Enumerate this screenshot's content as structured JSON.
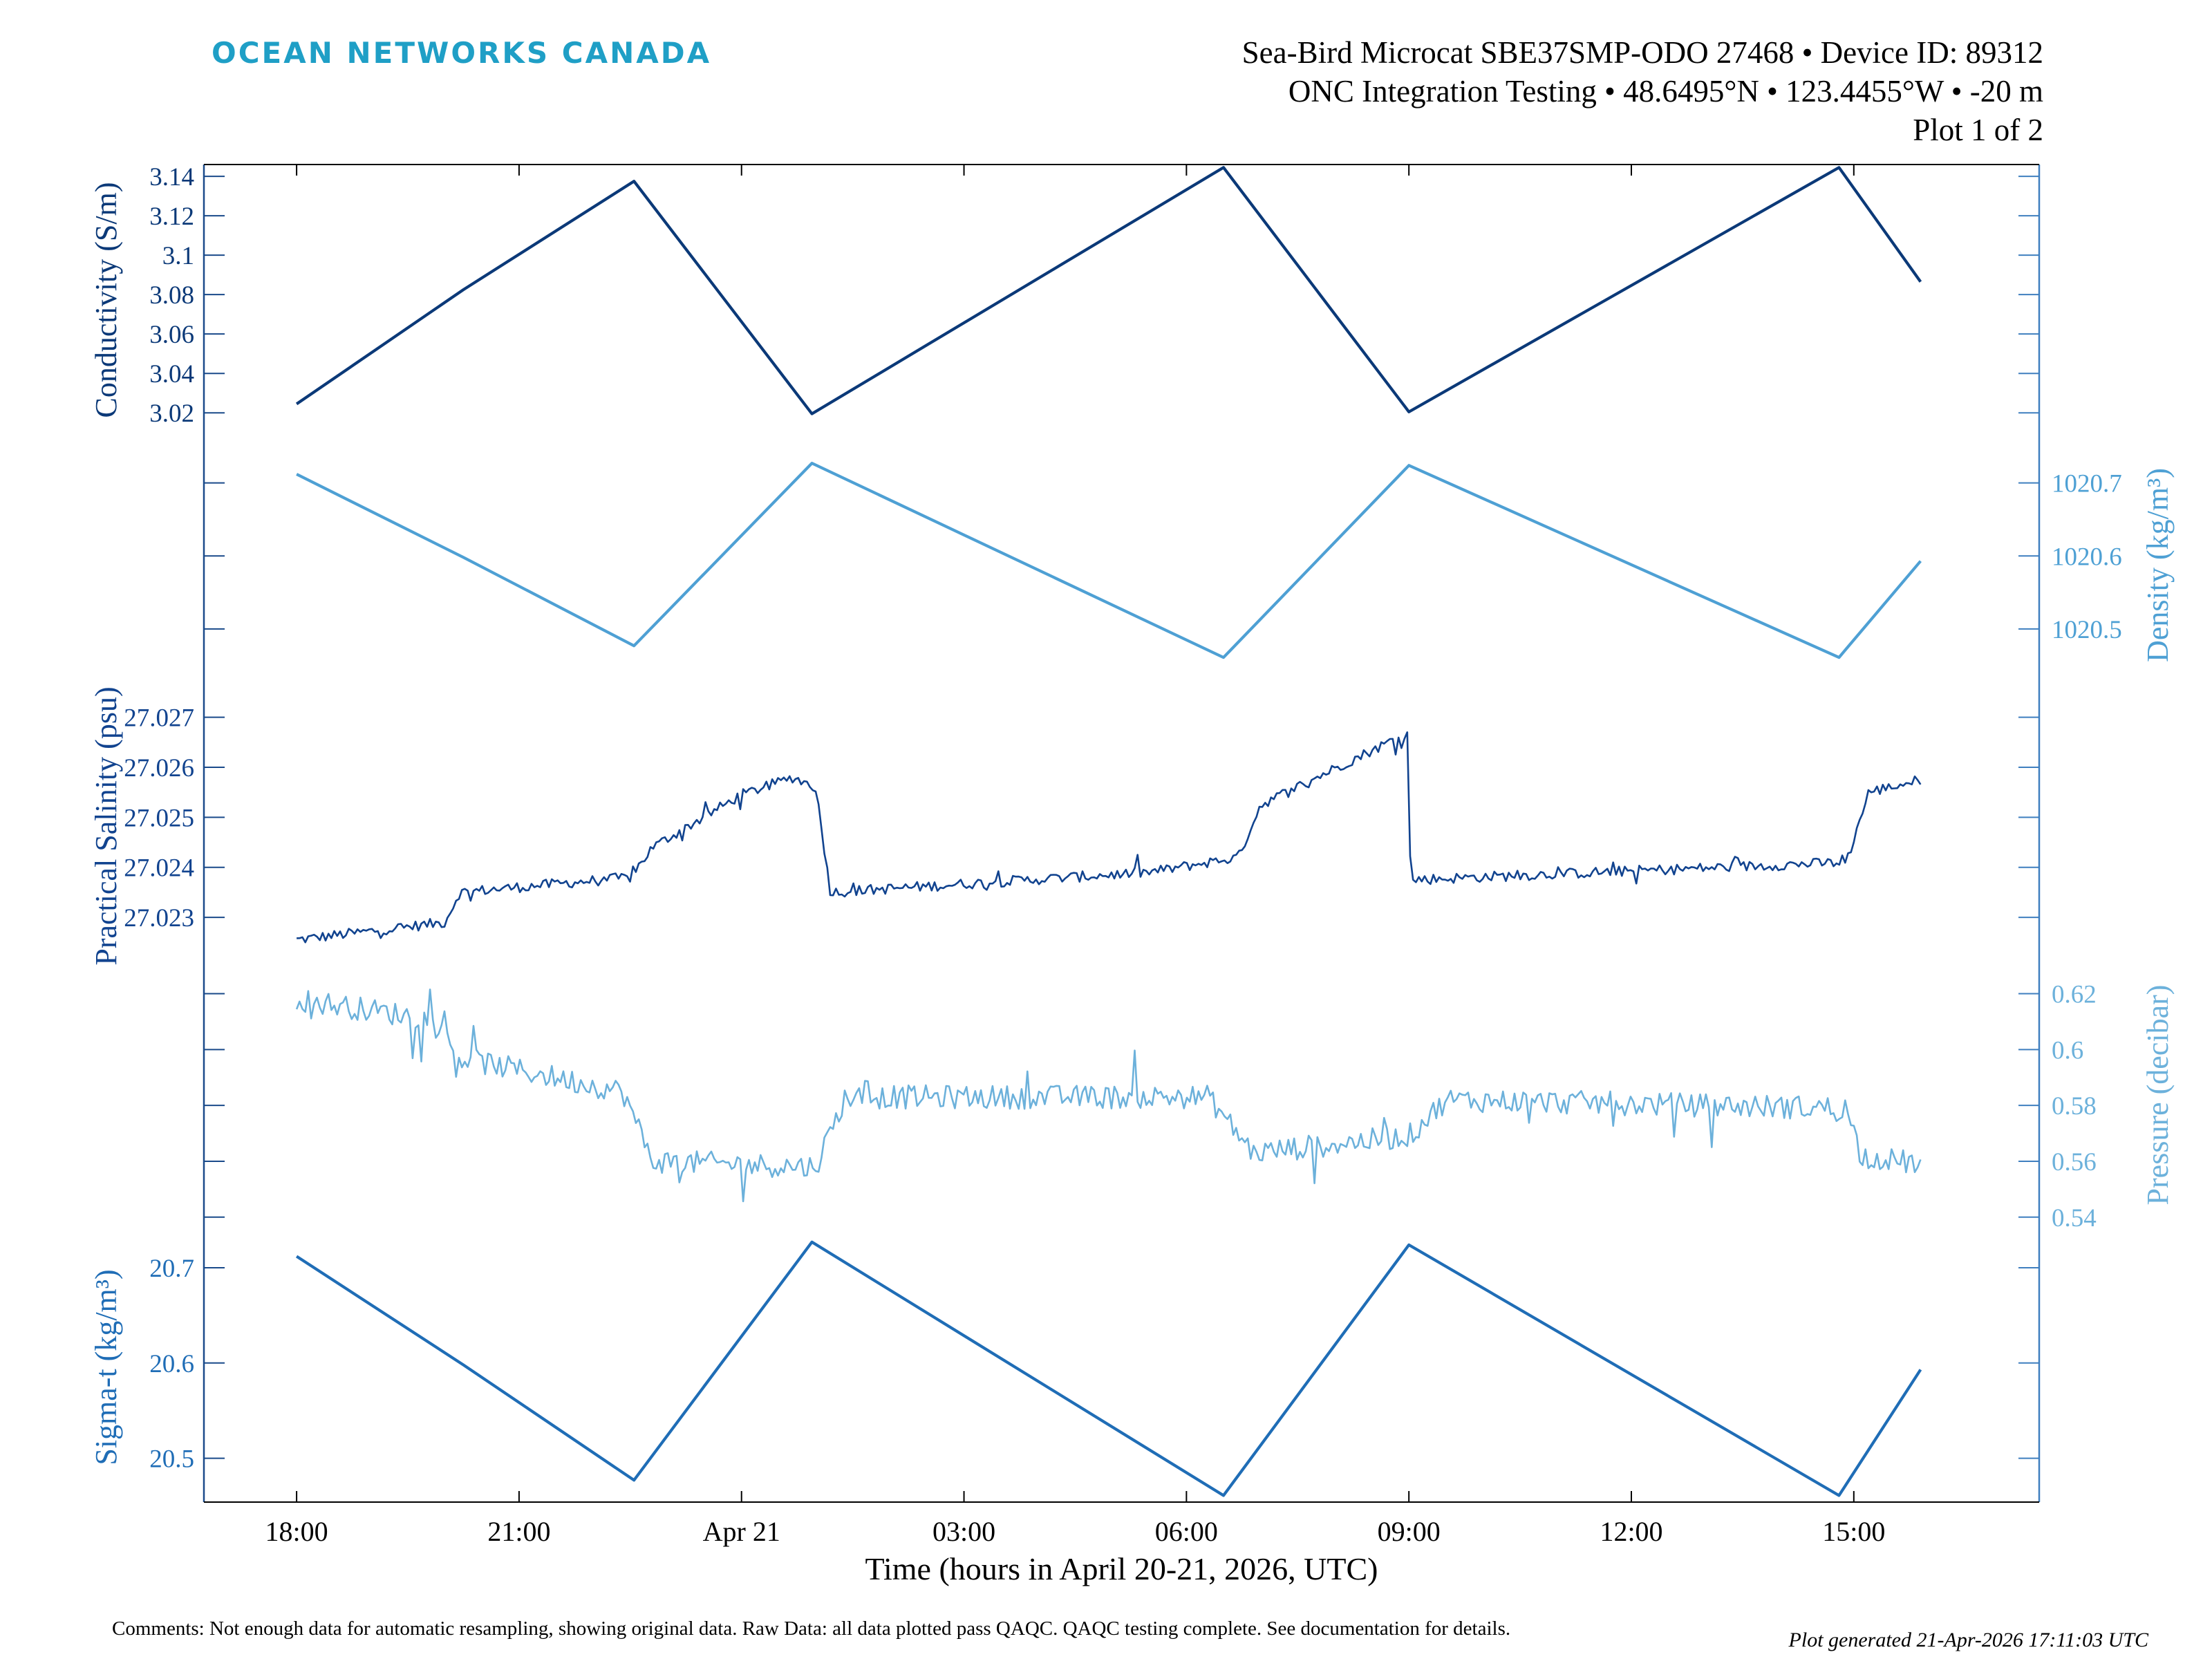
{
  "brand": "OCEAN NETWORKS CANADA",
  "header": {
    "line1": "Sea-Bird Microcat SBE37SMP-ODO 27468 • Device ID: 89312",
    "line2": "ONC Integration Testing • 48.6495°N • 123.4455°W • -20 m",
    "line3": "Plot 1 of 2"
  },
  "footer": {
    "comments": "Comments: Not enough data for automatic resampling, showing original data. Raw Data: all data plotted pass QAQC. QAQC testing complete. See documentation for details.",
    "generated": "Plot generated 21-Apr-2026 17:11:03 UTC"
  },
  "colors": {
    "conductivity": "#0b3978",
    "density": "#4ea0d4",
    "salinity": "#11438f",
    "pressure": "#6cb1db",
    "sigma": "#1f6db6",
    "frame_left": "#1a4a8a",
    "frame_right": "#3f7fbf"
  },
  "chart_data": {
    "type": "line",
    "xlabel": "Time (hours in April 20-21, 2026, UTC)",
    "xlim": [
      -1.25,
      23.5
    ],
    "x_ticks": [
      {
        "t": 0,
        "label": "18:00"
      },
      {
        "t": 3,
        "label": "21:00"
      },
      {
        "t": 6,
        "label": "Apr 21"
      },
      {
        "t": 9,
        "label": "03:00"
      },
      {
        "t": 12,
        "label": "06:00"
      },
      {
        "t": 15,
        "label": "09:00"
      },
      {
        "t": 18,
        "label": "12:00"
      },
      {
        "t": 21,
        "label": "15:00"
      }
    ],
    "series": [
      {
        "key": "conductivity",
        "name": "Conductivity",
        "ylabel": "Conductivity (S/m)",
        "axis_side": "left",
        "ylim": [
          3.0085,
          3.146
        ],
        "ticks": [
          3.02,
          3.04,
          3.06,
          3.08,
          3.1,
          3.12,
          3.14
        ],
        "tick_labels": [
          "3.02",
          "3.04",
          "3.06",
          "3.08",
          "3.1",
          "3.12",
          "3.14"
        ],
        "t": [
          0,
          2.25,
          4.55,
          6.95,
          12.5,
          15.0,
          20.8,
          21.9
        ],
        "values": [
          3.0245,
          3.0825,
          3.1375,
          3.0195,
          3.1445,
          3.0205,
          3.1445,
          3.0865
        ]
      },
      {
        "key": "density",
        "name": "Density",
        "ylabel": "Density (kg/m³)",
        "axis_side": "right",
        "ylim": [
          1020.41,
          1020.765
        ],
        "ticks": [
          1020.5,
          1020.6,
          1020.7
        ],
        "tick_labels": [
          "1020.5",
          "1020.6",
          "1020.7"
        ],
        "t": [
          0,
          2.25,
          4.55,
          6.95,
          12.5,
          15.0,
          20.8,
          21.9
        ],
        "values": [
          1020.712,
          1020.598,
          1020.477,
          1020.727,
          1020.461,
          1020.724,
          1020.461,
          1020.593
        ]
      },
      {
        "key": "salinity",
        "name": "Practical Salinity",
        "ylabel": "Practical Salinity (psu)",
        "axis_side": "left",
        "ylim": [
          27.0222,
          27.02745
        ],
        "ticks": [
          27.023,
          27.024,
          27.025,
          27.026,
          27.027
        ],
        "tick_labels": [
          "27.023",
          "27.024",
          "27.025",
          "27.026",
          "27.027"
        ],
        "noisy": true,
        "noise": 0.00021,
        "spike": 0.0003,
        "t": [
          0,
          2.0,
          2.2,
          4.5,
          4.8,
          6.0,
          6.7,
          7.0,
          7.2,
          11.5,
          12.7,
          13.0,
          15.0,
          15.02,
          20.9,
          21.2,
          21.9
        ],
        "values": [
          27.02255,
          27.0229,
          27.0235,
          27.0238,
          27.0244,
          27.02545,
          27.0258,
          27.0256,
          27.0235,
          27.0239,
          27.0242,
          27.02525,
          27.0267,
          27.02375,
          27.0241,
          27.0255,
          27.02575
        ]
      },
      {
        "key": "pressure",
        "name": "Pressure",
        "ylabel": "Pressure (decibar)",
        "axis_side": "right",
        "ylim": [
          0.5345,
          0.633
        ],
        "ticks": [
          0.54,
          0.56,
          0.58,
          0.6,
          0.62
        ],
        "tick_labels": [
          "0.54",
          "0.56",
          "0.58",
          "0.6",
          "0.62"
        ],
        "noisy": true,
        "noise": 0.0085,
        "spike": 0.014,
        "t": [
          0,
          1.8,
          2.2,
          4.4,
          4.8,
          7.0,
          7.4,
          12.3,
          12.9,
          15.0,
          15.5,
          20.9,
          21.1,
          21.9
        ],
        "values": [
          0.618,
          0.611,
          0.597,
          0.585,
          0.56,
          0.558,
          0.583,
          0.583,
          0.563,
          0.569,
          0.582,
          0.579,
          0.562,
          0.559
        ]
      },
      {
        "key": "sigma",
        "name": "Sigma-t",
        "ylabel": "Sigma-t (kg/m³)",
        "axis_side": "left",
        "ylim": [
          20.454,
          20.737
        ],
        "ticks": [
          20.5,
          20.6,
          20.7
        ],
        "tick_labels": [
          "20.5",
          "20.6",
          "20.7"
        ],
        "t": [
          0,
          2.25,
          4.55,
          6.95,
          12.5,
          15.0,
          20.8,
          21.9
        ],
        "values": [
          20.712,
          20.598,
          20.477,
          20.727,
          20.461,
          20.724,
          20.461,
          20.593
        ]
      }
    ]
  }
}
